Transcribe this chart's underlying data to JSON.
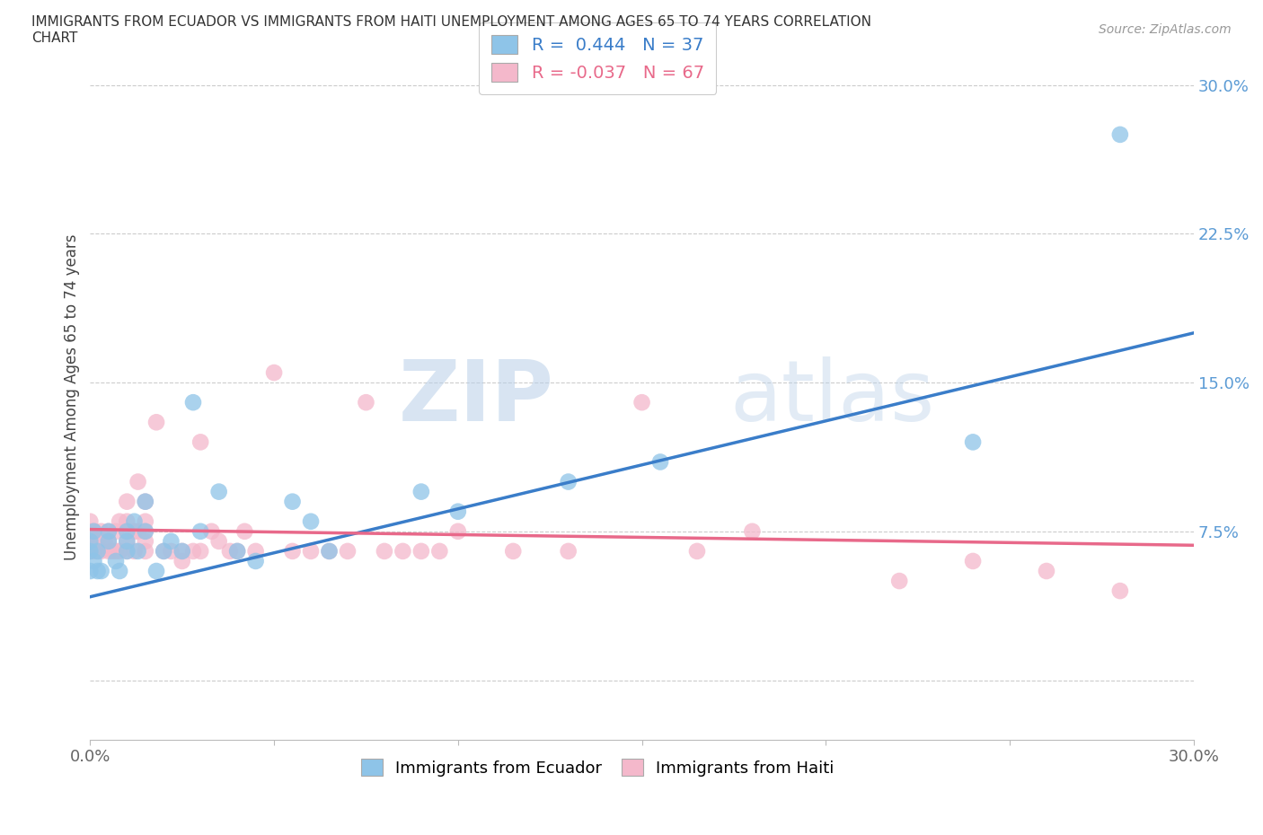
{
  "title_line1": "IMMIGRANTS FROM ECUADOR VS IMMIGRANTS FROM HAITI UNEMPLOYMENT AMONG AGES 65 TO 74 YEARS CORRELATION",
  "title_line2": "CHART",
  "source": "Source: ZipAtlas.com",
  "ylabel": "Unemployment Among Ages 65 to 74 years",
  "xlim": [
    0.0,
    0.3
  ],
  "ylim": [
    -0.03,
    0.315
  ],
  "xticks": [
    0.0,
    0.05,
    0.1,
    0.15,
    0.2,
    0.25,
    0.3
  ],
  "xticklabels": [
    "0.0%",
    "",
    "",
    "",
    "",
    "",
    "30.0%"
  ],
  "yticks": [
    0.0,
    0.075,
    0.15,
    0.225,
    0.3
  ],
  "yticklabels": [
    "",
    "7.5%",
    "15.0%",
    "22.5%",
    "30.0%"
  ],
  "watermark_zip": "ZIP",
  "watermark_atlas": "atlas",
  "ecuador_color": "#8ec4e8",
  "haiti_color": "#f4b8cb",
  "ecuador_line_color": "#3a7dc9",
  "haiti_line_color": "#e8698a",
  "ecuador_R": 0.444,
  "ecuador_N": 37,
  "haiti_R": -0.037,
  "haiti_N": 67,
  "ecuador_points_x": [
    0.0,
    0.0,
    0.0,
    0.001,
    0.001,
    0.002,
    0.002,
    0.003,
    0.005,
    0.005,
    0.007,
    0.008,
    0.01,
    0.01,
    0.01,
    0.012,
    0.013,
    0.015,
    0.015,
    0.018,
    0.02,
    0.022,
    0.025,
    0.028,
    0.03,
    0.035,
    0.04,
    0.045,
    0.055,
    0.06,
    0.065,
    0.09,
    0.1,
    0.13,
    0.155,
    0.24,
    0.28
  ],
  "ecuador_points_y": [
    0.055,
    0.065,
    0.07,
    0.06,
    0.075,
    0.055,
    0.065,
    0.055,
    0.07,
    0.075,
    0.06,
    0.055,
    0.065,
    0.07,
    0.075,
    0.08,
    0.065,
    0.09,
    0.075,
    0.055,
    0.065,
    0.07,
    0.065,
    0.14,
    0.075,
    0.095,
    0.065,
    0.06,
    0.09,
    0.08,
    0.065,
    0.095,
    0.085,
    0.1,
    0.11,
    0.12,
    0.275
  ],
  "haiti_points_x": [
    0.0,
    0.0,
    0.0,
    0.0,
    0.001,
    0.001,
    0.002,
    0.002,
    0.003,
    0.003,
    0.004,
    0.005,
    0.005,
    0.005,
    0.006,
    0.007,
    0.007,
    0.008,
    0.008,
    0.01,
    0.01,
    0.01,
    0.01,
    0.01,
    0.012,
    0.012,
    0.013,
    0.013,
    0.015,
    0.015,
    0.015,
    0.015,
    0.015,
    0.018,
    0.02,
    0.022,
    0.025,
    0.025,
    0.028,
    0.03,
    0.03,
    0.033,
    0.035,
    0.038,
    0.04,
    0.042,
    0.045,
    0.05,
    0.055,
    0.06,
    0.065,
    0.07,
    0.075,
    0.08,
    0.085,
    0.09,
    0.095,
    0.1,
    0.115,
    0.13,
    0.15,
    0.165,
    0.18,
    0.22,
    0.24,
    0.26,
    0.28
  ],
  "haiti_points_y": [
    0.065,
    0.07,
    0.075,
    0.08,
    0.065,
    0.075,
    0.065,
    0.07,
    0.065,
    0.075,
    0.07,
    0.065,
    0.07,
    0.075,
    0.065,
    0.065,
    0.075,
    0.065,
    0.08,
    0.065,
    0.07,
    0.075,
    0.08,
    0.09,
    0.065,
    0.075,
    0.075,
    0.1,
    0.065,
    0.07,
    0.075,
    0.08,
    0.09,
    0.13,
    0.065,
    0.065,
    0.065,
    0.06,
    0.065,
    0.065,
    0.12,
    0.075,
    0.07,
    0.065,
    0.065,
    0.075,
    0.065,
    0.155,
    0.065,
    0.065,
    0.065,
    0.065,
    0.14,
    0.065,
    0.065,
    0.065,
    0.065,
    0.075,
    0.065,
    0.065,
    0.14,
    0.065,
    0.075,
    0.05,
    0.06,
    0.055,
    0.045
  ]
}
